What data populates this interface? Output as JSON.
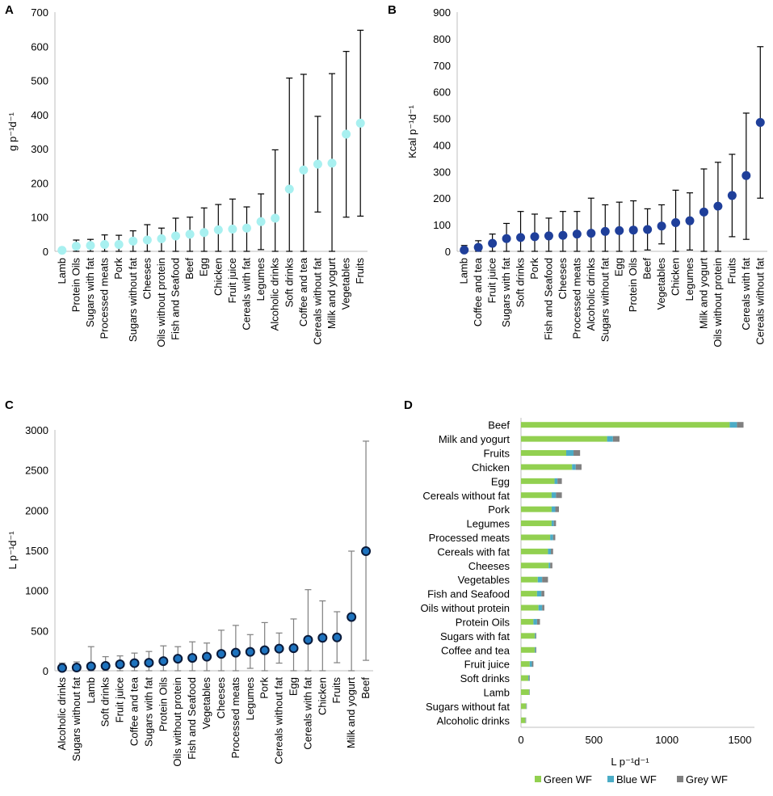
{
  "colors": {
    "panelA": "#a8f0f0",
    "panelB": "#1f3f9a",
    "panelC_fill": "#1e73be",
    "panelC_stroke": "#0a1a3a",
    "green": "#92d050",
    "blue": "#4bacc6",
    "grey": "#808080"
  },
  "chart_data": [
    {
      "panel": "A",
      "type": "scatter",
      "ylabel": "g p⁻¹d⁻¹",
      "ylim": [
        0,
        700
      ],
      "yticks": [
        0,
        100,
        200,
        300,
        400,
        500,
        600,
        700
      ],
      "categories": [
        "Lamb",
        "Protein Oils",
        "Sugars with fat",
        "Processed meats",
        "Pork",
        "Sugars without fat",
        "Cheeses",
        "Oils without protein",
        "Fish and Seafood",
        "Beef",
        "Egg",
        "Chicken",
        "Fruit juice",
        "Cereals with fat",
        "Legumes",
        "Alcoholic drinks",
        "Soft drinks",
        "Coffee and tea",
        "Cereals without fat",
        "Milk and yogurt",
        "Vegetables",
        "Fruits"
      ],
      "values": [
        3,
        15,
        17,
        20,
        20,
        30,
        33,
        37,
        45,
        50,
        55,
        63,
        65,
        68,
        87,
        97,
        182,
        238,
        255,
        258,
        343,
        375
      ],
      "err_low": [
        0,
        0,
        0,
        0,
        0,
        0,
        0,
        0,
        0,
        0,
        0,
        0,
        0,
        0,
        5,
        0,
        0,
        0,
        115,
        0,
        100,
        103
      ],
      "err_high": [
        8,
        33,
        35,
        48,
        47,
        60,
        78,
        68,
        97,
        100,
        127,
        137,
        153,
        130,
        168,
        297,
        507,
        518,
        395,
        520,
        585,
        647
      ]
    },
    {
      "panel": "B",
      "type": "scatter",
      "ylabel": "Kcal p⁻¹d⁻¹",
      "ylim": [
        0,
        900
      ],
      "yticks": [
        0,
        100,
        200,
        300,
        400,
        500,
        600,
        700,
        800,
        900
      ],
      "categories": [
        "Lamb",
        "Coffee and tea",
        "Fruit juice",
        "Sugars with fat",
        "Soft drinks",
        "Pork",
        "Fish and Seafood",
        "Cheeses",
        "Processed meats",
        "Alcoholic drinks",
        "Sugars without fat",
        "Egg",
        "Protein Oils",
        "Beef",
        "Vegetables",
        "Chicken",
        "Legumes",
        "Milk and yogurt",
        "Oils without protein",
        "Fruits",
        "Cereals with fat",
        "Cereals without fat"
      ],
      "values": [
        5,
        15,
        30,
        48,
        52,
        55,
        58,
        60,
        65,
        68,
        75,
        78,
        80,
        82,
        95,
        108,
        115,
        148,
        170,
        210,
        285,
        485
      ],
      "err_low": [
        0,
        0,
        0,
        0,
        0,
        0,
        0,
        0,
        0,
        0,
        0,
        0,
        0,
        5,
        28,
        0,
        5,
        0,
        0,
        55,
        45,
        200
      ],
      "err_high": [
        22,
        40,
        65,
        105,
        150,
        140,
        125,
        150,
        150,
        200,
        175,
        185,
        190,
        160,
        175,
        230,
        220,
        310,
        335,
        365,
        520,
        770
      ]
    },
    {
      "panel": "C",
      "type": "scatter",
      "ylabel": "L p⁻¹d⁻¹",
      "ylim": [
        0,
        3000
      ],
      "yticks": [
        0,
        500,
        1000,
        1500,
        2000,
        2500,
        3000
      ],
      "categories": [
        "Alcoholic drinks",
        "Sugars without fat",
        "Lamb",
        "Soft drinks",
        "Fruit juice",
        "Coffee and tea",
        "Sugars with fat",
        "Protein Oils",
        "Oils without protein",
        "Fish and Seafood",
        "Vegetables",
        "Cheeses",
        "Processed meats",
        "Legumes",
        "Pork",
        "Cereals without fat",
        "Egg",
        "Cereals with fat",
        "Chicken",
        "Fruits",
        "Milk and yogurt",
        "Beef"
      ],
      "values": [
        35,
        40,
        55,
        60,
        80,
        95,
        100,
        120,
        150,
        160,
        175,
        210,
        225,
        235,
        255,
        275,
        280,
        385,
        410,
        415,
        670,
        1490
      ],
      "err_low": [
        0,
        0,
        0,
        0,
        0,
        0,
        0,
        0,
        0,
        0,
        0,
        0,
        0,
        30,
        0,
        95,
        0,
        0,
        0,
        100,
        0,
        130
      ],
      "err_high": [
        95,
        110,
        300,
        175,
        185,
        220,
        240,
        310,
        300,
        360,
        345,
        505,
        565,
        450,
        600,
        470,
        645,
        1010,
        870,
        735,
        1490,
        2860
      ]
    },
    {
      "panel": "D",
      "type": "bar",
      "orientation": "horizontal",
      "stacked": true,
      "xlabel": "L p⁻¹d⁻¹",
      "xlim": [
        0,
        1600
      ],
      "xticks": [
        0,
        500,
        1000,
        1500
      ],
      "categories": [
        "Beef",
        "Milk and yogurt",
        "Fruits",
        "Chicken",
        "Egg",
        "Cereals without fat",
        "Pork",
        "Legumes",
        "Processed meats",
        "Cereals with fat",
        "Cheeses",
        "Vegetables",
        "Fish and Seafood",
        "Oils without protein",
        "Protein Oils",
        "Sugars with fat",
        "Coffee and tea",
        "Fruit juice",
        "Soft drinks",
        "Lamb",
        "Sugars without fat",
        "Alcoholic drinks"
      ],
      "series": [
        {
          "name": "Green WF",
          "values": [
            1430,
            590,
            310,
            350,
            230,
            210,
            210,
            210,
            200,
            185,
            190,
            115,
            110,
            120,
            85,
            95,
            95,
            60,
            50,
            55,
            35,
            30
          ]
        },
        {
          "name": "Blue WF",
          "values": [
            50,
            40,
            50,
            25,
            20,
            30,
            25,
            15,
            20,
            20,
            10,
            30,
            30,
            25,
            25,
            5,
            5,
            15,
            5,
            2,
            2,
            2
          ]
        },
        {
          "name": "Grey WF",
          "values": [
            45,
            45,
            45,
            40,
            30,
            40,
            25,
            15,
            15,
            15,
            15,
            40,
            20,
            15,
            20,
            5,
            5,
            10,
            5,
            3,
            3,
            3
          ]
        }
      ]
    }
  ]
}
